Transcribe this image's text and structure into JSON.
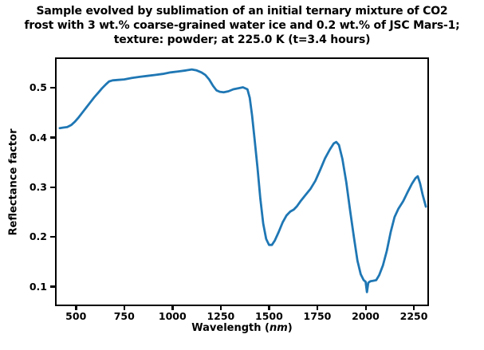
{
  "figure": {
    "title_lines": [
      "Sample evolved by sublimation of an initial ternary mixture of CO2",
      "frost with 3 wt.% coarse-grained water ice and 0.2 wt.% of JSC Mars-1;",
      "texture: powder; at 225.0 K (t=3.4 hours)"
    ]
  },
  "chart_data": {
    "type": "line",
    "title": "Sample evolved by sublimation of an initial ternary mixture of CO2 frost with 3 wt.% coarse-grained water ice and 0.2 wt.% of JSC Mars-1; texture: powder; at 225.0 K (t=3.4 hours)",
    "xlabel_prefix": "Wavelength (",
    "xlabel_unit": "nm",
    "xlabel_suffix": ")",
    "ylabel": "Reflectance factor",
    "xlim": [
      400,
      2320
    ],
    "ylim": [
      0.064,
      0.558
    ],
    "xticks": [
      500,
      750,
      1000,
      1250,
      1500,
      1750,
      2000,
      2250
    ],
    "yticks": [
      0.1,
      0.2,
      0.3,
      0.4,
      0.5
    ],
    "grid": false,
    "legend": "none",
    "line_color": "#1f77b4",
    "line_width": 2.8,
    "series": [
      {
        "name": "reflectance-spectrum",
        "x": [
          416,
          435,
          455,
          475,
          495,
          515,
          535,
          555,
          575,
          595,
          615,
          635,
          655,
          672,
          690,
          720,
          750,
          790,
          830,
          870,
          910,
          950,
          990,
          1030,
          1070,
          1100,
          1125,
          1150,
          1170,
          1190,
          1210,
          1228,
          1245,
          1265,
          1290,
          1315,
          1340,
          1365,
          1388,
          1400,
          1412,
          1425,
          1440,
          1455,
          1470,
          1485,
          1500,
          1515,
          1530,
          1550,
          1570,
          1590,
          1610,
          1628,
          1645,
          1665,
          1690,
          1715,
          1740,
          1765,
          1790,
          1815,
          1835,
          1848,
          1862,
          1880,
          1900,
          1920,
          1940,
          1958,
          1975,
          1990,
          2000,
          2007,
          2014,
          2025,
          2040,
          2055,
          2070,
          2090,
          2110,
          2130,
          2150,
          2170,
          2195,
          2220,
          2240,
          2258,
          2270,
          2282,
          2295,
          2312
        ],
        "y": [
          0.419,
          0.42,
          0.421,
          0.425,
          0.432,
          0.441,
          0.451,
          0.461,
          0.471,
          0.481,
          0.49,
          0.499,
          0.507,
          0.513,
          0.515,
          0.516,
          0.517,
          0.52,
          0.522,
          0.524,
          0.526,
          0.528,
          0.531,
          0.533,
          0.535,
          0.537,
          0.535,
          0.531,
          0.526,
          0.517,
          0.504,
          0.495,
          0.492,
          0.491,
          0.493,
          0.497,
          0.499,
          0.501,
          0.497,
          0.48,
          0.445,
          0.398,
          0.34,
          0.277,
          0.227,
          0.196,
          0.184,
          0.184,
          0.193,
          0.21,
          0.229,
          0.243,
          0.251,
          0.255,
          0.262,
          0.273,
          0.285,
          0.297,
          0.313,
          0.335,
          0.358,
          0.376,
          0.388,
          0.391,
          0.385,
          0.357,
          0.31,
          0.253,
          0.198,
          0.152,
          0.125,
          0.113,
          0.11,
          0.089,
          0.108,
          0.111,
          0.112,
          0.113,
          0.123,
          0.143,
          0.172,
          0.21,
          0.24,
          0.257,
          0.272,
          0.292,
          0.307,
          0.318,
          0.322,
          0.308,
          0.286,
          0.261
        ]
      }
    ]
  }
}
